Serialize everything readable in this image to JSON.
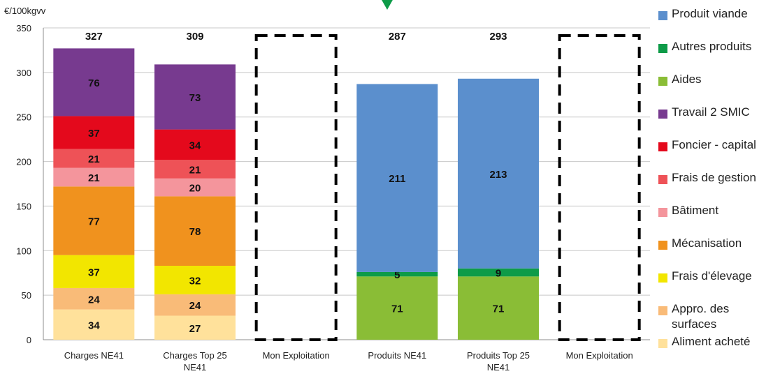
{
  "chart_data": {
    "type": "bar",
    "stacked": true,
    "ylabel": "€/100kgvv",
    "ylim": [
      0,
      350
    ],
    "yticks": [
      0,
      50,
      100,
      150,
      200,
      250,
      300,
      350
    ],
    "categories": [
      "Charges NE41",
      "Charges Top 25 NE41",
      "Mon Exploitation",
      "Produits NE41",
      "Produits Top 25 NE41",
      "Mon Exploitation"
    ],
    "totals": [
      "327",
      "309",
      "",
      "287",
      "293",
      ""
    ],
    "empty_placeholder_categories": [
      2,
      5
    ],
    "series": [
      {
        "name": "Aliment acheté",
        "color": "#FFE19B",
        "values": [
          34,
          27,
          null,
          null,
          null,
          null
        ]
      },
      {
        "name": "Appro. des surfaces",
        "color": "#F9BB78",
        "values": [
          24,
          24,
          null,
          null,
          null,
          null
        ]
      },
      {
        "name": "Frais d'élevage",
        "color": "#F2E600",
        "values": [
          37,
          32,
          null,
          null,
          null,
          null
        ]
      },
      {
        "name": "Mécanisation",
        "color": "#F0921E",
        "values": [
          77,
          78,
          null,
          null,
          null,
          null
        ]
      },
      {
        "name": "Bâtiment",
        "color": "#F4959C",
        "values": [
          21,
          20,
          null,
          null,
          null,
          null
        ]
      },
      {
        "name": "Frais de gestion",
        "color": "#EE5257",
        "values": [
          21,
          21,
          null,
          null,
          null,
          null
        ]
      },
      {
        "name": "Foncier - capital",
        "color": "#E4091C",
        "values": [
          37,
          34,
          null,
          null,
          null,
          null
        ]
      },
      {
        "name": "Travail 2 SMIC",
        "color": "#773A8F",
        "values": [
          76,
          73,
          null,
          null,
          null,
          null
        ]
      },
      {
        "name": "Aides",
        "color": "#8ABD36",
        "values": [
          null,
          null,
          null,
          71,
          71,
          null
        ]
      },
      {
        "name": "Autres produits",
        "color": "#0D9B48",
        "values": [
          null,
          null,
          null,
          5,
          9,
          null
        ]
      },
      {
        "name": "Produit viande",
        "color": "#5B8FCD",
        "values": [
          null,
          null,
          null,
          211,
          213,
          null
        ]
      }
    ],
    "legend_order": [
      "Produit viande",
      "Autres produits",
      "Aides",
      "Travail 2 SMIC",
      "Foncier - capital",
      "Frais de gestion",
      "Bâtiment",
      "Mécanisation",
      "Frais d'élevage",
      "Appro. des surfaces",
      "Aliment acheté"
    ],
    "legend_position": "right",
    "grid": true
  },
  "marker_color": "#0D9B48"
}
